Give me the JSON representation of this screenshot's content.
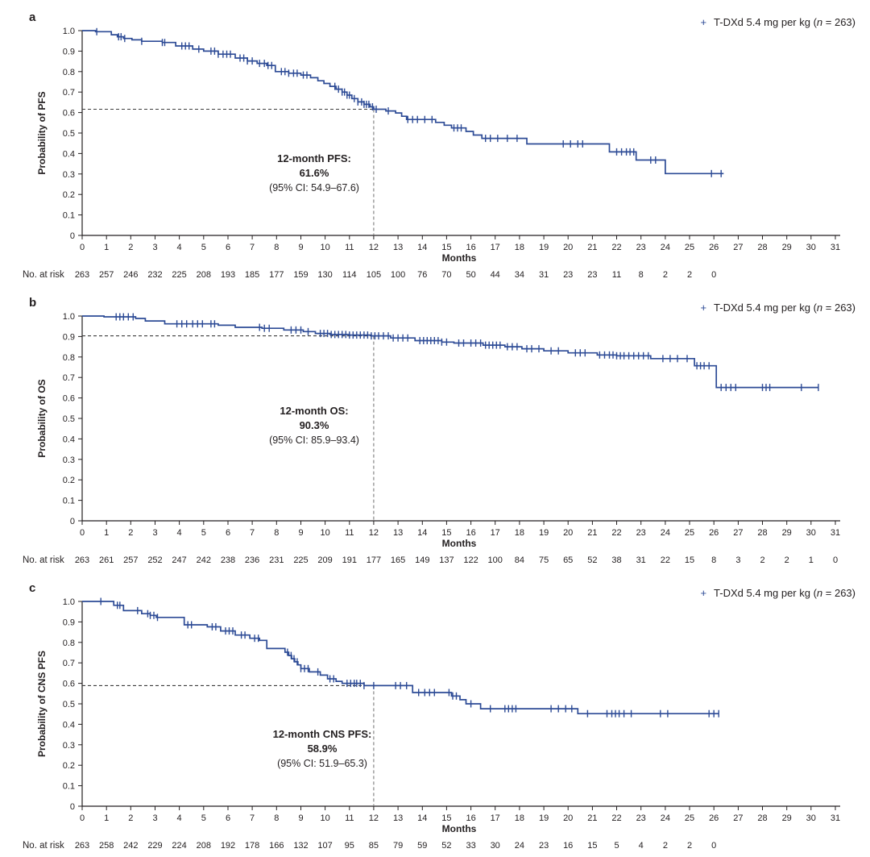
{
  "figure": {
    "background": "#ffffff",
    "curve_color": "#2d4b96",
    "text_color": "#231f20"
  },
  "chart_data": [
    {
      "type": "km_step",
      "panel_letter": "a",
      "ylabel": "Probability of PFS",
      "xlabel": "Months",
      "at_risk_label": "No. at risk",
      "legend": {
        "marker": "+",
        "prefix": "T-DXd 5.4 mg per kg (",
        "n_italic": "n",
        "suffix": " = 263)"
      },
      "annotation": {
        "line1": "12-month PFS:",
        "line2": "61.6%",
        "line3": "(95% CI: 54.9–67.6)"
      },
      "reference": {
        "time": 12,
        "value": 0.616
      },
      "xlim": [
        0,
        31
      ],
      "ylim": [
        0,
        1
      ],
      "x_ticks": [
        0,
        1,
        2,
        3,
        4,
        5,
        6,
        7,
        8,
        9,
        10,
        11,
        12,
        13,
        14,
        15,
        16,
        17,
        18,
        19,
        20,
        21,
        22,
        23,
        24,
        25,
        26,
        27,
        28,
        29,
        30,
        31
      ],
      "y_tick_labels": [
        "1.0",
        "0.9",
        "0.8",
        "0.7",
        "0.6",
        "0.5",
        "0.4",
        "0.3",
        "0.2",
        "0.1",
        "0"
      ],
      "steps": [
        [
          0,
          1
        ],
        [
          0.55,
          0.995
        ],
        [
          1.2,
          0.98
        ],
        [
          1.45,
          0.97
        ],
        [
          1.7,
          0.962
        ],
        [
          2.05,
          0.955
        ],
        [
          2.45,
          0.948
        ],
        [
          3.3,
          0.942
        ],
        [
          3.85,
          0.925
        ],
        [
          4.55,
          0.91
        ],
        [
          5,
          0.9
        ],
        [
          5.6,
          0.885
        ],
        [
          6.3,
          0.866
        ],
        [
          6.8,
          0.852
        ],
        [
          7.2,
          0.84
        ],
        [
          7.6,
          0.83
        ],
        [
          7.95,
          0.8
        ],
        [
          8.5,
          0.792
        ],
        [
          9,
          0.783
        ],
        [
          9.4,
          0.77
        ],
        [
          9.7,
          0.755
        ],
        [
          9.95,
          0.742
        ],
        [
          10.2,
          0.728
        ],
        [
          10.45,
          0.714
        ],
        [
          10.7,
          0.7
        ],
        [
          10.9,
          0.685
        ],
        [
          11.1,
          0.668
        ],
        [
          11.35,
          0.652
        ],
        [
          11.6,
          0.64
        ],
        [
          11.85,
          0.628
        ],
        [
          12,
          0.616
        ],
        [
          12.5,
          0.608
        ],
        [
          12.9,
          0.598
        ],
        [
          13.15,
          0.582
        ],
        [
          13.35,
          0.566
        ],
        [
          14.55,
          0.552
        ],
        [
          14.9,
          0.538
        ],
        [
          15.2,
          0.525
        ],
        [
          15.8,
          0.508
        ],
        [
          16.1,
          0.49
        ],
        [
          16.45,
          0.474
        ],
        [
          18.3,
          0.447
        ],
        [
          21.7,
          0.408
        ],
        [
          22.8,
          0.368
        ],
        [
          24,
          0.302
        ]
      ],
      "end_time": 26.4,
      "censor_times": [
        0.6,
        1.5,
        1.6,
        1.75,
        2.45,
        3.3,
        3.4,
        4.1,
        4.25,
        4.4,
        4.8,
        5.3,
        5.45,
        5.6,
        5.8,
        5.95,
        6.1,
        6.5,
        6.65,
        6.8,
        7,
        7.3,
        7.5,
        7.65,
        7.8,
        8.2,
        8.35,
        8.5,
        8.7,
        8.85,
        9.1,
        9.25,
        10.4,
        10.55,
        10.7,
        10.8,
        10.9,
        11,
        11.2,
        11.35,
        11.5,
        11.6,
        11.7,
        11.8,
        11.95,
        12.1,
        12.6,
        13.4,
        13.6,
        13.8,
        14.1,
        14.4,
        15.3,
        15.45,
        15.6,
        16.6,
        16.8,
        17.1,
        17.5,
        17.9,
        19.8,
        20.1,
        20.4,
        20.6,
        22,
        22.2,
        22.4,
        22.55,
        22.7,
        23.4,
        23.6,
        25.9,
        26.3
      ],
      "at_risk": {
        "months": [
          0,
          1,
          2,
          3,
          4,
          5,
          6,
          7,
          8,
          9,
          10,
          11,
          12,
          13,
          14,
          15,
          16,
          17,
          18,
          19,
          20,
          21,
          22,
          23,
          24,
          25,
          26
        ],
        "counts": [
          263,
          257,
          246,
          232,
          225,
          208,
          193,
          185,
          177,
          159,
          130,
          114,
          105,
          100,
          76,
          70,
          50,
          44,
          34,
          31,
          23,
          23,
          11,
          8,
          2,
          2,
          0
        ]
      }
    },
    {
      "type": "km_step",
      "panel_letter": "b",
      "ylabel": "Probability of OS",
      "xlabel": "Months",
      "at_risk_label": "No. at risk",
      "legend": {
        "marker": "+",
        "prefix": "T-DXd 5.4 mg per kg (",
        "n_italic": "n",
        "suffix": " = 263)"
      },
      "annotation": {
        "line1": "12-month OS:",
        "line2": "90.3%",
        "line3": "(95% CI: 85.9–93.4)"
      },
      "reference": {
        "time": 12,
        "value": 0.903
      },
      "xlim": [
        0,
        31
      ],
      "ylim": [
        0,
        1
      ],
      "x_ticks": [
        0,
        1,
        2,
        3,
        4,
        5,
        6,
        7,
        8,
        9,
        10,
        11,
        12,
        13,
        14,
        15,
        16,
        17,
        18,
        19,
        20,
        21,
        22,
        23,
        24,
        25,
        26,
        27,
        28,
        29,
        30,
        31
      ],
      "y_tick_labels": [
        "1.0",
        "0.9",
        "0.8",
        "0.7",
        "0.6",
        "0.5",
        "0.4",
        "0.3",
        "0.2",
        "0.1",
        "0"
      ],
      "steps": [
        [
          0,
          1
        ],
        [
          0.9,
          0.996
        ],
        [
          2.2,
          0.988
        ],
        [
          2.6,
          0.976
        ],
        [
          3.4,
          0.962
        ],
        [
          5.6,
          0.955
        ],
        [
          6.3,
          0.945
        ],
        [
          7.4,
          0.94
        ],
        [
          8.3,
          0.932
        ],
        [
          9.1,
          0.924
        ],
        [
          9.6,
          0.915
        ],
        [
          10.2,
          0.91
        ],
        [
          11,
          0.907
        ],
        [
          11.9,
          0.903
        ],
        [
          12.7,
          0.893
        ],
        [
          13.7,
          0.88
        ],
        [
          14.8,
          0.873
        ],
        [
          15.3,
          0.868
        ],
        [
          16.5,
          0.858
        ],
        [
          17.4,
          0.85
        ],
        [
          18.1,
          0.84
        ],
        [
          19,
          0.83
        ],
        [
          20,
          0.82
        ],
        [
          21.2,
          0.81
        ],
        [
          22,
          0.806
        ],
        [
          23.4,
          0.792
        ],
        [
          25.2,
          0.757
        ],
        [
          26.1,
          0.651
        ]
      ],
      "end_time": 30.3,
      "censor_times": [
        1.4,
        1.55,
        1.7,
        1.9,
        2.1,
        3.9,
        4.1,
        4.3,
        4.55,
        4.75,
        4.95,
        5.3,
        5.45,
        7.3,
        7.5,
        7.7,
        8.6,
        8.8,
        9,
        9.3,
        9.8,
        9.95,
        10.1,
        10.25,
        10.4,
        10.55,
        10.7,
        10.85,
        11,
        11.15,
        11.3,
        11.45,
        11.6,
        11.75,
        11.9,
        12.05,
        12.2,
        12.4,
        12.6,
        12.8,
        13,
        13.2,
        13.4,
        13.9,
        14.05,
        14.2,
        14.35,
        14.5,
        14.65,
        14.8,
        15,
        15.5,
        15.7,
        16,
        16.2,
        16.4,
        16.6,
        16.75,
        16.9,
        17.05,
        17.2,
        17.5,
        17.7,
        17.9,
        18.3,
        18.5,
        18.8,
        19.3,
        19.6,
        20.3,
        20.5,
        20.7,
        21.3,
        21.5,
        21.7,
        21.85,
        22,
        22.15,
        22.3,
        22.5,
        22.7,
        22.9,
        23.1,
        23.3,
        23.9,
        24.2,
        24.5,
        24.9,
        25.3,
        25.45,
        25.6,
        25.8,
        26.3,
        26.5,
        26.7,
        26.9,
        28,
        28.15,
        28.3,
        29.6,
        30.3
      ],
      "at_risk": {
        "months": [
          0,
          1,
          2,
          3,
          4,
          5,
          6,
          7,
          8,
          9,
          10,
          11,
          12,
          13,
          14,
          15,
          16,
          17,
          18,
          19,
          20,
          21,
          22,
          23,
          24,
          25,
          26,
          27,
          28,
          29,
          30,
          31
        ],
        "counts": [
          263,
          261,
          257,
          252,
          247,
          242,
          238,
          236,
          231,
          225,
          209,
          191,
          177,
          165,
          149,
          137,
          122,
          100,
          84,
          75,
          65,
          52,
          38,
          31,
          22,
          15,
          8,
          3,
          2,
          2,
          1,
          0
        ]
      }
    },
    {
      "type": "km_step",
      "panel_letter": "c",
      "ylabel": "Probability of CNS PFS",
      "xlabel": "Months",
      "at_risk_label": "No. at risk",
      "legend": {
        "marker": "+",
        "prefix": "T-DXd 5.4 mg per kg (",
        "n_italic": "n",
        "suffix": " = 263)"
      },
      "annotation": {
        "line1": "12-month CNS PFS:",
        "line2": "58.9%",
        "line3": "(95% CI: 51.9–65.3)"
      },
      "reference": {
        "time": 12,
        "value": 0.589
      },
      "xlim": [
        0,
        31
      ],
      "ylim": [
        0,
        1
      ],
      "x_ticks": [
        0,
        1,
        2,
        3,
        4,
        5,
        6,
        7,
        8,
        9,
        10,
        11,
        12,
        13,
        14,
        15,
        16,
        17,
        18,
        19,
        20,
        21,
        22,
        23,
        24,
        25,
        26,
        27,
        28,
        29,
        30,
        31
      ],
      "y_tick_labels": [
        "1.0",
        "0.9",
        "0.8",
        "0.7",
        "0.6",
        "0.5",
        "0.4",
        "0.3",
        "0.2",
        "0.1",
        "0"
      ],
      "steps": [
        [
          0,
          1
        ],
        [
          1.3,
          0.981
        ],
        [
          1.7,
          0.955
        ],
        [
          2.45,
          0.94
        ],
        [
          2.8,
          0.932
        ],
        [
          3.05,
          0.922
        ],
        [
          4.2,
          0.886
        ],
        [
          5.15,
          0.876
        ],
        [
          5.7,
          0.856
        ],
        [
          6.3,
          0.836
        ],
        [
          6.9,
          0.82
        ],
        [
          7.3,
          0.81
        ],
        [
          7.6,
          0.77
        ],
        [
          8.35,
          0.752
        ],
        [
          8.5,
          0.736
        ],
        [
          8.62,
          0.72
        ],
        [
          8.75,
          0.705
        ],
        [
          8.88,
          0.69
        ],
        [
          9,
          0.672
        ],
        [
          9.35,
          0.656
        ],
        [
          9.8,
          0.64
        ],
        [
          10.1,
          0.622
        ],
        [
          10.45,
          0.61
        ],
        [
          10.7,
          0.6
        ],
        [
          11.6,
          0.589
        ],
        [
          13.6,
          0.555
        ],
        [
          15.2,
          0.538
        ],
        [
          15.55,
          0.52
        ],
        [
          15.8,
          0.5
        ],
        [
          16.4,
          0.476
        ],
        [
          20.4,
          0.452
        ]
      ],
      "end_time": 26.2,
      "censor_times": [
        0.77,
        1.45,
        1.55,
        2.28,
        2.7,
        2.8,
        2.95,
        3.1,
        4.35,
        4.5,
        5.35,
        5.5,
        5.9,
        6.05,
        6.2,
        6.55,
        6.7,
        7.1,
        7.25,
        8.45,
        8.6,
        8.72,
        8.85,
        9,
        9.15,
        9.3,
        9.7,
        10.2,
        10.35,
        10.9,
        11.05,
        11.2,
        11.3,
        11.45,
        11.6,
        12,
        12.9,
        13.1,
        13.35,
        13.85,
        14.1,
        14.3,
        14.5,
        15.1,
        15.25,
        15.4,
        16,
        16.8,
        17.4,
        17.55,
        17.7,
        17.85,
        19.3,
        19.6,
        19.9,
        20.15,
        20.8,
        21.6,
        21.8,
        21.95,
        22.1,
        22.3,
        22.6,
        23.8,
        24.1,
        25.8,
        26,
        26.2
      ],
      "at_risk": {
        "months": [
          0,
          1,
          2,
          3,
          4,
          5,
          6,
          7,
          8,
          9,
          10,
          11,
          12,
          13,
          14,
          15,
          16,
          17,
          18,
          19,
          20,
          21,
          22,
          23,
          24,
          25,
          26
        ],
        "counts": [
          263,
          258,
          242,
          229,
          224,
          208,
          192,
          178,
          166,
          132,
          107,
          95,
          85,
          79,
          59,
          52,
          33,
          30,
          24,
          23,
          16,
          15,
          5,
          4,
          2,
          2,
          0
        ]
      }
    }
  ]
}
